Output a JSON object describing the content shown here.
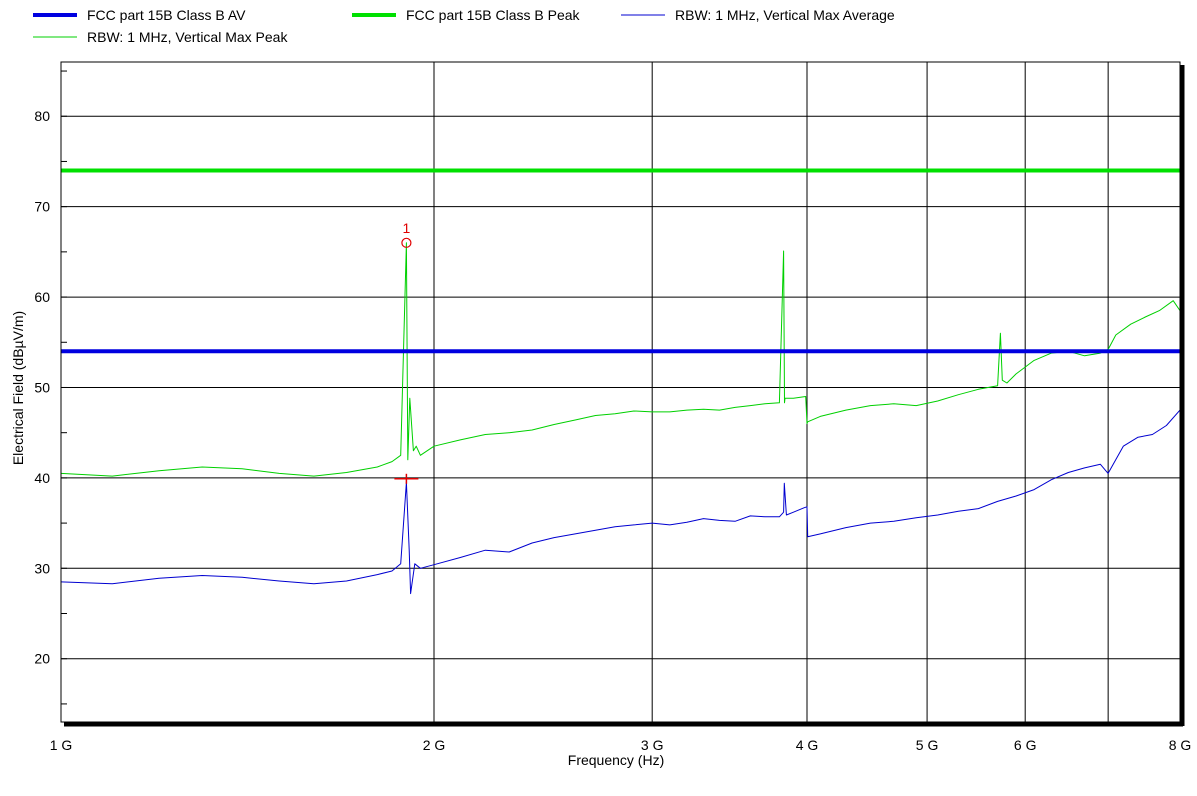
{
  "chart_data": {
    "type": "line",
    "xlabel": "Frequency (Hz)",
    "ylabel": "Electrical Field (dBµV/m)",
    "x_scale": "log",
    "xlim": [
      1000000000,
      8000000000
    ],
    "ylim": [
      13,
      86
    ],
    "x_ticks": [
      {
        "value": 1000000000,
        "label": "1 G"
      },
      {
        "value": 2000000000,
        "label": "2 G"
      },
      {
        "value": 3000000000,
        "label": "3 G"
      },
      {
        "value": 4000000000,
        "label": "4 G"
      },
      {
        "value": 5000000000,
        "label": "5 G"
      },
      {
        "value": 6000000000,
        "label": "6 G"
      },
      {
        "value": 8000000000,
        "label": "8 G"
      }
    ],
    "x_unlabeled_gridlines": [
      7000000000
    ],
    "y_ticks": [
      20,
      30,
      40,
      50,
      60,
      70,
      80
    ],
    "grid": true,
    "legend_position": "top",
    "series": [
      {
        "name": "FCC part 15B Class B AV",
        "kind": "limit",
        "color": "#0000e0",
        "width": 4,
        "x": [
          1000000000,
          8000000000
        ],
        "y": [
          54,
          54
        ]
      },
      {
        "name": "FCC part 15B Class B Peak",
        "kind": "limit",
        "color": "#00e000",
        "width": 4,
        "x": [
          1000000000,
          8000000000
        ],
        "y": [
          74,
          74
        ]
      },
      {
        "name": "RBW: 1 MHz, Vertical Max Average",
        "kind": "measurement",
        "color": "#0000d0",
        "width": 1,
        "x": [
          1000000000,
          1100000000,
          1200000000,
          1300000000,
          1400000000,
          1500000000,
          1600000000,
          1700000000,
          1800000000,
          1850000000,
          1880000000,
          1900000000,
          1910000000,
          1915000000,
          1930000000,
          1950000000,
          2000000000,
          2100000000,
          2200000000,
          2300000000,
          2400000000,
          2500000000,
          2600000000,
          2700000000,
          2800000000,
          2900000000,
          3000000000,
          3100000000,
          3200000000,
          3300000000,
          3400000000,
          3500000000,
          3600000000,
          3700000000,
          3800000000,
          3830000000,
          3835000000,
          3850000000,
          3900000000,
          3980000000,
          4000000000,
          4005000000,
          4100000000,
          4300000000,
          4500000000,
          4700000000,
          4900000000,
          5100000000,
          5300000000,
          5500000000,
          5700000000,
          5900000000,
          6100000000,
          6300000000,
          6500000000,
          6700000000,
          6900000000,
          7000000000,
          7200000000,
          7400000000,
          7600000000,
          7800000000,
          8000000000
        ],
        "y": [
          28.5,
          28.3,
          28.9,
          29.2,
          29.0,
          28.6,
          28.3,
          28.6,
          29.3,
          29.7,
          30.5,
          39.5,
          32,
          27.2,
          30.5,
          30.0,
          30.4,
          31.2,
          32.0,
          31.8,
          32.8,
          33.4,
          33.8,
          34.2,
          34.6,
          34.8,
          35.0,
          34.8,
          35.1,
          35.5,
          35.3,
          35.2,
          35.8,
          35.7,
          35.7,
          36.2,
          39.4,
          35.9,
          36.2,
          36.7,
          36.8,
          33.5,
          33.8,
          34.5,
          35.0,
          35.2,
          35.6,
          35.9,
          36.3,
          36.6,
          37.4,
          38.0,
          38.7,
          39.8,
          40.6,
          41.1,
          41.5,
          40.5,
          43.5,
          44.5,
          44.8,
          45.8,
          47.5
        ]
      },
      {
        "name": "RBW: 1 MHz, Vertical Max Peak",
        "kind": "measurement",
        "color": "#00d000",
        "width": 1,
        "x": [
          1000000000,
          1100000000,
          1200000000,
          1300000000,
          1400000000,
          1500000000,
          1600000000,
          1700000000,
          1800000000,
          1850000000,
          1880000000,
          1900000000,
          1905000000,
          1912000000,
          1925000000,
          1935000000,
          1950000000,
          2000000000,
          2100000000,
          2200000000,
          2300000000,
          2400000000,
          2500000000,
          2600000000,
          2700000000,
          2800000000,
          2900000000,
          3000000000,
          3100000000,
          3200000000,
          3300000000,
          3400000000,
          3500000000,
          3600000000,
          3700000000,
          3800000000,
          3830000000,
          3836000000,
          3840000000,
          3900000000,
          3990000000,
          4000000000,
          4005000000,
          4100000000,
          4300000000,
          4500000000,
          4700000000,
          4900000000,
          5100000000,
          5300000000,
          5500000000,
          5700000000,
          5730000000,
          5750000000,
          5800000000,
          5900000000,
          6100000000,
          6300000000,
          6500000000,
          6700000000,
          6900000000,
          7000000000,
          7100000000,
          7300000000,
          7500000000,
          7700000000,
          7900000000,
          8000000000
        ],
        "y": [
          40.5,
          40.2,
          40.8,
          41.2,
          41.0,
          40.5,
          40.2,
          40.6,
          41.2,
          41.8,
          42.5,
          66.0,
          42.0,
          48.8,
          43.0,
          43.5,
          42.5,
          43.5,
          44.2,
          44.8,
          45.0,
          45.3,
          45.9,
          46.4,
          46.9,
          47.1,
          47.4,
          47.3,
          47.3,
          47.5,
          47.6,
          47.5,
          47.8,
          48.0,
          48.2,
          48.3,
          65.1,
          48.3,
          48.8,
          48.8,
          49.0,
          46.0,
          46.2,
          46.8,
          47.5,
          48.0,
          48.2,
          48.0,
          48.5,
          49.2,
          49.8,
          50.2,
          56.0,
          50.8,
          50.5,
          51.5,
          53.0,
          53.8,
          54.0,
          53.5,
          53.8,
          54.2,
          55.8,
          57.0,
          57.8,
          58.5,
          59.6,
          58.5
        ]
      }
    ],
    "marker": {
      "label": "1",
      "x": 1900000000,
      "y": 66.0
    }
  }
}
